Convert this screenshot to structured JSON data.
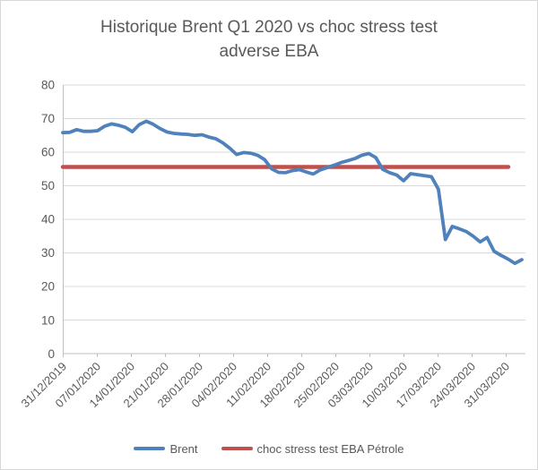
{
  "chart_data": {
    "type": "line",
    "title": "Historique Brent Q1 2020 vs choc stress test adverse EBA",
    "xlabel": "",
    "ylabel": "",
    "ylim": [
      0,
      80
    ],
    "y_ticks": [
      0,
      10,
      20,
      30,
      40,
      50,
      60,
      70,
      80
    ],
    "x_tick_labels": [
      "31/12/2019",
      "07/01/2020",
      "14/01/2020",
      "21/01/2020",
      "28/01/2020",
      "04/02/2020",
      "11/02/2020",
      "18/02/2020",
      "25/02/2020",
      "03/03/2020",
      "10/03/2020",
      "17/03/2020",
      "24/03/2020",
      "31/03/2020"
    ],
    "grid": "horizontal",
    "legend_position": "bottom",
    "colors": {
      "grid": "#d9d9d9",
      "axis": "#bfbfbf",
      "text": "#595959"
    },
    "series": [
      {
        "name": "Brent",
        "color": "#4F81BD",
        "values": [
          65.8,
          65.9,
          66.7,
          66.2,
          66.2,
          66.4,
          67.7,
          68.4,
          68.0,
          67.4,
          66.1,
          68.2,
          69.2,
          68.3,
          67.0,
          66.0,
          65.6,
          65.4,
          65.3,
          65.0,
          65.2,
          64.5,
          64.0,
          62.8,
          61.2,
          59.3,
          59.9,
          59.7,
          59.1,
          57.8,
          55.1,
          54.0,
          53.9,
          54.5,
          54.8,
          54.1,
          53.5,
          54.7,
          55.4,
          56.1,
          56.9,
          57.5,
          58.1,
          59.1,
          59.6,
          58.4,
          54.9,
          53.9,
          53.2,
          51.5,
          53.6,
          53.3,
          53.0,
          52.7,
          49.0,
          34.0,
          37.9,
          37.2,
          36.4,
          35.0,
          33.3,
          34.6,
          30.5,
          29.3,
          28.2,
          26.9,
          28.0
        ]
      },
      {
        "name": "choc stress test EBA Pétrole",
        "color": "#C0504D",
        "constant_value": 55.6
      }
    ]
  }
}
